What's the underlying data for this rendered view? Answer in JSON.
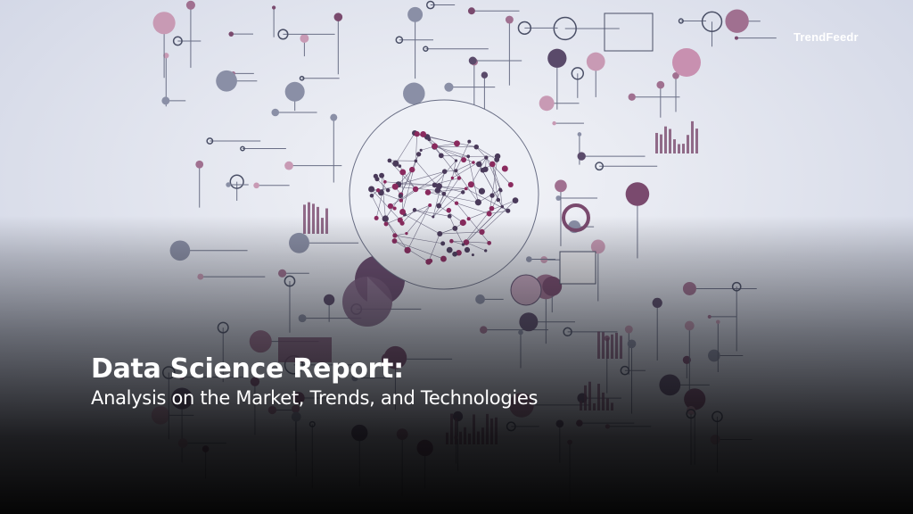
{
  "brand": {
    "logo_text": "TrendFeedr"
  },
  "hero": {
    "title": "Data Science Report:",
    "subtitle": "Analysis on the Market, Trends, and Technologies"
  },
  "colors": {
    "accent": "#7a4a6e",
    "node_dark": "#5a4a6a",
    "line": "#6a6f86"
  }
}
